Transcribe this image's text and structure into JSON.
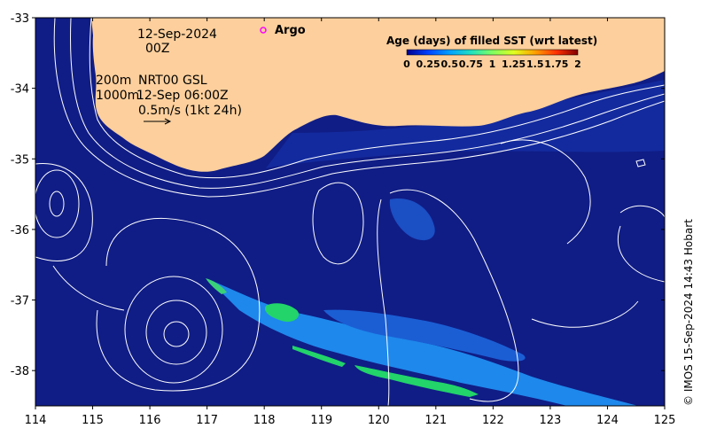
{
  "map": {
    "lon_range": [
      114,
      125
    ],
    "lat_range": [
      -38.5,
      -33
    ],
    "x_ticks": [
      114,
      115,
      116,
      117,
      118,
      119,
      120,
      121,
      122,
      123,
      124,
      125
    ],
    "y_ticks": [
      -33,
      -34,
      -35,
      -36,
      -37,
      -38
    ],
    "colors": {
      "ocean": "#101d86",
      "land": "#fccf9c",
      "contour": "#ffffff",
      "argo": "#ff00ff"
    }
  },
  "annotations": {
    "date_line1": "12-Sep-2024",
    "date_line2": "00Z",
    "depth_200": "200m",
    "depth_1000": "1000m",
    "source_label": "NRT00 GSL",
    "time_label": "12-Sep 06:00Z",
    "speed_label": "0.5m/s (1kt 24h)",
    "argo_label": "Argo"
  },
  "colorbar": {
    "title": "Age (days) of filled SST (wrt latest)",
    "ticks": [
      "0",
      "0.25",
      "0.5",
      "0.75",
      "1",
      "1.25",
      "1.5",
      "1.75",
      "2"
    ],
    "stops": [
      "#00008f",
      "#0040ff",
      "#00a0ff",
      "#20e0c0",
      "#80ff60",
      "#e0ff20",
      "#ffa000",
      "#ff3000",
      "#800000"
    ]
  },
  "credit": "© IMOS 15-Sep-2024 14:43 Hobart"
}
